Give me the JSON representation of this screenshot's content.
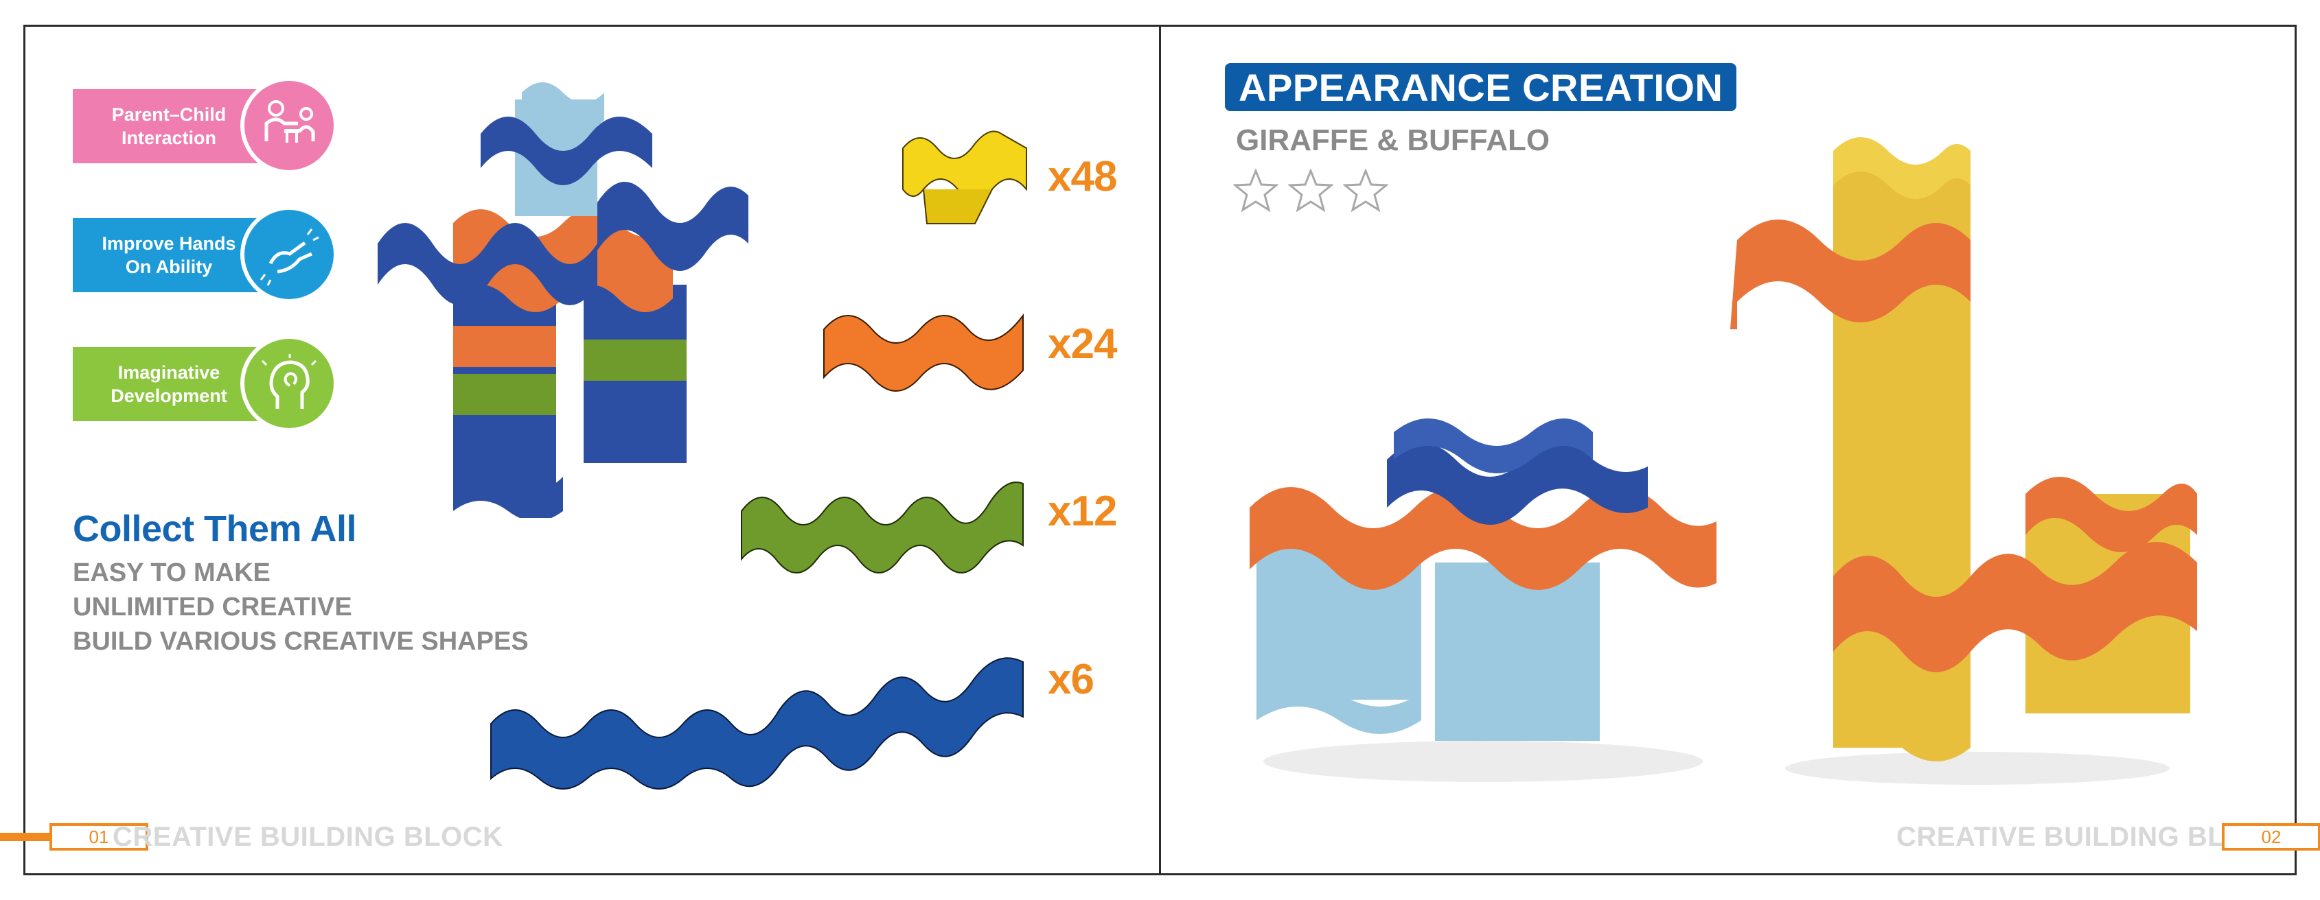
{
  "left_page": {
    "features": [
      {
        "label": "Parent–Child Interaction",
        "color": "#ef7db0",
        "icon": "parent-child-icon"
      },
      {
        "label": "Improve Hands On Ability",
        "color": "#1c9bd8",
        "icon": "hands-icon"
      },
      {
        "label": "Imaginative Development",
        "color": "#8cc63f",
        "icon": "imagination-icon"
      }
    ],
    "collect_title": "Collect Them All",
    "benefits": [
      "EASY TO MAKE",
      "UNLIMITED CREATIVE",
      "BUILD VARIOUS CREATIVE SHAPES"
    ],
    "pieces": [
      {
        "color": "#f4d51a",
        "count": "x48"
      },
      {
        "color": "#f07a2a",
        "count": "x24"
      },
      {
        "color": "#6f9a2c",
        "count": "x12"
      },
      {
        "color": "#1f55a6",
        "count": "x6"
      }
    ],
    "footer": {
      "page_number": "01",
      "label": "CREATIVE BUILDING BLOCK"
    }
  },
  "right_page": {
    "title": "APPEARANCE CREATION",
    "subtitle": "GIRAFFE & BUFFALO",
    "stars": 3,
    "footer": {
      "page_number": "02",
      "label": "CREATIVE BUILDING BLOCK"
    }
  },
  "colors": {
    "accent_orange": "#f08a1e",
    "title_blue": "#0d5ca8",
    "text_gray": "#8a8a8a",
    "block_blue": "#2c4fa3",
    "block_light_blue": "#9cc9e0",
    "block_orange": "#e8743a",
    "block_yellow": "#e8bf3c"
  }
}
